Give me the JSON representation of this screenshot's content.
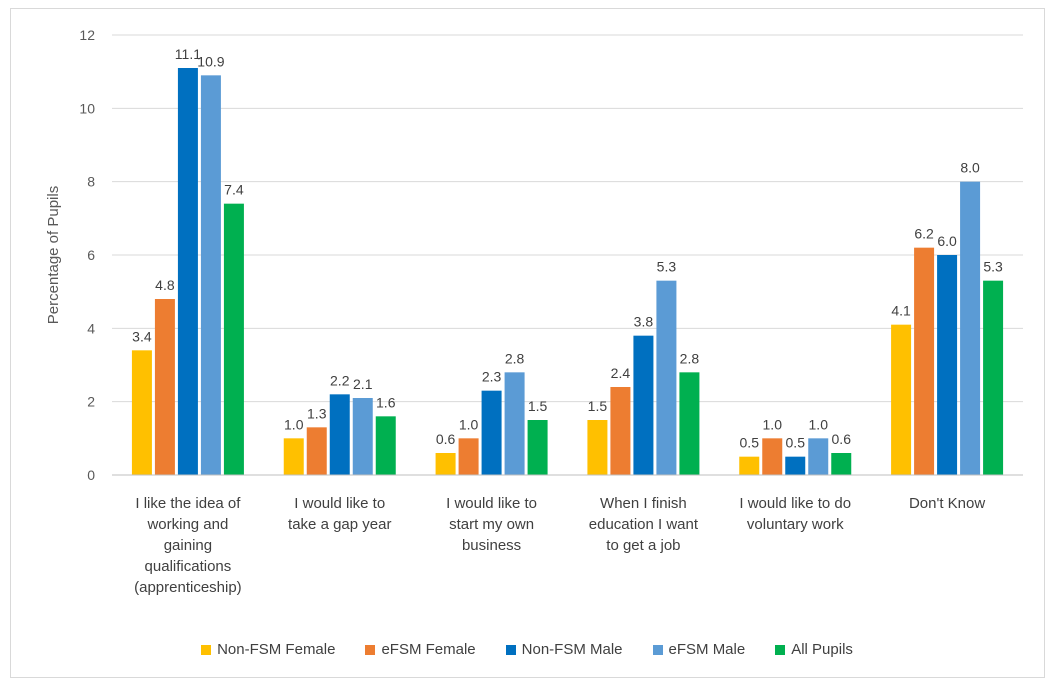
{
  "chart_data": {
    "type": "bar",
    "title": "",
    "xlabel": "",
    "ylabel": "Percentage of Pupils",
    "ylim": [
      0,
      12
    ],
    "yticks": [
      0,
      2,
      4,
      6,
      8,
      10,
      12
    ],
    "grid": true,
    "legend_position": "bottom",
    "categories": [
      "I like the idea of working and gaining qualifications (apprenticeship)",
      "I would like to take a gap year",
      "I would like to start my own business",
      "When I finish education I want to get a job",
      "I would like to do voluntary work",
      "Don't Know"
    ],
    "series": [
      {
        "name": "Non-FSM Female",
        "color": "#FFC000",
        "values": [
          3.4,
          1.0,
          0.6,
          1.5,
          0.5,
          4.1
        ],
        "labels": [
          "3.4",
          "1.0",
          "0.6",
          "1.5",
          "0.5",
          "4.1"
        ]
      },
      {
        "name": "eFSM Female",
        "color": "#ED7D31",
        "values": [
          4.8,
          1.3,
          1.0,
          2.4,
          1.0,
          6.2
        ],
        "labels": [
          "4.8",
          "1.3",
          "1.0",
          "2.4",
          "1.0",
          "6.2"
        ]
      },
      {
        "name": "Non-FSM Male",
        "color": "#0070C0",
        "values": [
          11.1,
          2.2,
          2.3,
          3.8,
          0.5,
          6.0
        ],
        "labels": [
          "11.1",
          "2.2",
          "2.3",
          "3.8",
          "0.5",
          "6.0"
        ]
      },
      {
        "name": "eFSM Male",
        "color": "#5B9BD5",
        "values": [
          10.9,
          2.1,
          2.8,
          5.3,
          1.0,
          8.0
        ],
        "labels": [
          "10.9",
          "2.1",
          "2.8",
          "5.3",
          "1.0",
          "8.0"
        ]
      },
      {
        "name": "All Pupils",
        "color": "#00B050",
        "values": [
          7.4,
          1.6,
          1.5,
          2.8,
          0.6,
          5.3
        ],
        "labels": [
          "7.4",
          "1.6",
          "1.5",
          "2.8",
          "0.6",
          "5.3"
        ]
      }
    ],
    "category_lines": [
      [
        "I like the idea of",
        "working and",
        "gaining",
        "qualifications",
        "(apprenticeship)"
      ],
      [
        "I would like to",
        "take a gap year"
      ],
      [
        "I would like to",
        "start my own",
        "business"
      ],
      [
        "When I finish",
        "education I want",
        "to get a job"
      ],
      [
        "I would like to do",
        "voluntary work"
      ],
      [
        "Don't Know"
      ]
    ],
    "gridline_color": "#d9d9d9",
    "axis_color": "#bfbfbf"
  }
}
